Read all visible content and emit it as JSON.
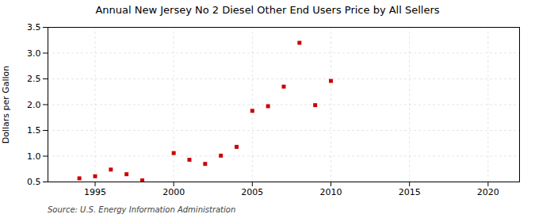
{
  "chart_data": {
    "type": "scatter",
    "title": "Annual New Jersey No 2 Diesel Other End Users Price by All Sellers",
    "ylabel": "Dollars per Gallon",
    "annotations": [
      "Source: U.S. Energy Information Administration"
    ],
    "x": [
      1994,
      1995,
      1996,
      1997,
      1998,
      2000,
      2001,
      2002,
      2003,
      2004,
      2005,
      2006,
      2007,
      2008,
      2009,
      2010
    ],
    "values": [
      0.57,
      0.61,
      0.74,
      0.65,
      0.53,
      1.06,
      0.93,
      0.85,
      1.01,
      1.18,
      1.88,
      1.97,
      2.35,
      3.2,
      1.99,
      2.46
    ],
    "color": "#cc0000",
    "marker": "square",
    "xlim": [
      1992,
      2022
    ],
    "ylim": [
      0.5,
      3.5
    ],
    "xticks": [
      1995,
      2000,
      2005,
      2010,
      2015,
      2020
    ],
    "yticks": [
      0.5,
      {
        "value": 1,
        "label": "1.0"
      },
      1.5,
      {
        "value": 2,
        "label": "2.0"
      },
      2.5,
      {
        "value": 3,
        "label": "3.0"
      },
      3.5
    ],
    "grid": true
  }
}
